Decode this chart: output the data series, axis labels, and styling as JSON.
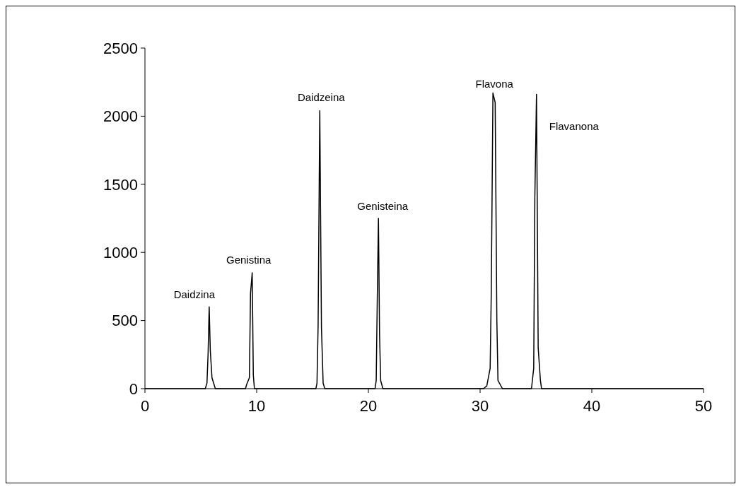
{
  "chart_data": {
    "type": "line",
    "color": "#000000",
    "x": [
      0,
      5.4,
      5.55,
      5.65,
      5.75,
      5.85,
      6.0,
      6.3,
      9.0,
      9.1,
      9.35,
      9.45,
      9.6,
      9.7,
      9.8,
      15.3,
      15.4,
      15.5,
      15.65,
      15.8,
      15.95,
      16.1,
      20.6,
      20.7,
      20.8,
      20.9,
      21.0,
      21.1,
      21.3,
      30.3,
      30.6,
      30.9,
      31.0,
      31.15,
      31.35,
      31.5,
      31.6,
      32.0,
      34.6,
      34.8,
      34.9,
      35.05,
      35.2,
      35.4,
      35.5,
      50
    ],
    "values": [
      0,
      0,
      40,
      250,
      600,
      280,
      80,
      0,
      0,
      30,
      80,
      700,
      850,
      100,
      0,
      0,
      40,
      460,
      2040,
      450,
      40,
      0,
      0,
      60,
      680,
      1250,
      400,
      60,
      0,
      0,
      20,
      150,
      700,
      2170,
      2100,
      500,
      60,
      0,
      0,
      150,
      1400,
      2160,
      300,
      60,
      0,
      0
    ],
    "xlim": [
      0,
      50
    ],
    "xticks": [
      0,
      10,
      20,
      30,
      40,
      50
    ],
    "ylim": [
      0,
      2500
    ],
    "yticks": [
      0,
      500,
      1000,
      1500,
      2000,
      2500
    ],
    "grid": false,
    "marker": "none",
    "line_style": "solid",
    "annotations": [
      {
        "text": "Daidzina",
        "x": 5.75,
        "y": 600
      },
      {
        "text": "Genistina",
        "x": 9.6,
        "y": 850
      },
      {
        "text": "Daidzeina",
        "x": 15.65,
        "y": 2040
      },
      {
        "text": "Genisteina",
        "x": 20.9,
        "y": 1250
      },
      {
        "text": "Flavona",
        "x": 31.15,
        "y": 2170
      },
      {
        "text": "Flavanona",
        "x": 35.05,
        "y": 2160
      }
    ]
  }
}
